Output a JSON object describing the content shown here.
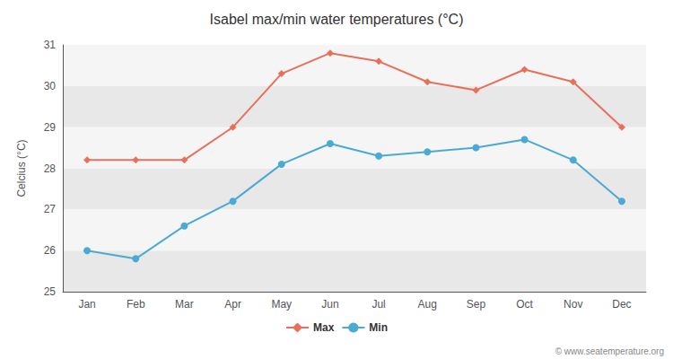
{
  "chart_data": {
    "type": "line",
    "title": "Isabel max/min water temperatures (°C)",
    "ylabel": "Celcius (°C)",
    "categories": [
      "Jan",
      "Feb",
      "Mar",
      "Apr",
      "May",
      "Jun",
      "Jul",
      "Aug",
      "Sep",
      "Oct",
      "Nov",
      "Dec"
    ],
    "series": [
      {
        "name": "Max",
        "color": "#e8705a",
        "marker": "diamond",
        "values": [
          28.2,
          28.2,
          28.2,
          29.0,
          30.3,
          30.8,
          30.6,
          30.1,
          29.9,
          30.4,
          30.1,
          29.0
        ]
      },
      {
        "name": "Min",
        "color": "#4baad3",
        "marker": "circle",
        "values": [
          26.0,
          25.8,
          26.6,
          27.2,
          28.1,
          28.6,
          28.3,
          28.4,
          28.5,
          28.7,
          28.2,
          27.2
        ]
      }
    ],
    "ylim": [
      25,
      31
    ],
    "yticks": [
      25,
      26,
      27,
      28,
      29,
      30,
      31
    ],
    "grid": true,
    "legend": "bottom",
    "annotation": "© www.seatemperature.org"
  }
}
